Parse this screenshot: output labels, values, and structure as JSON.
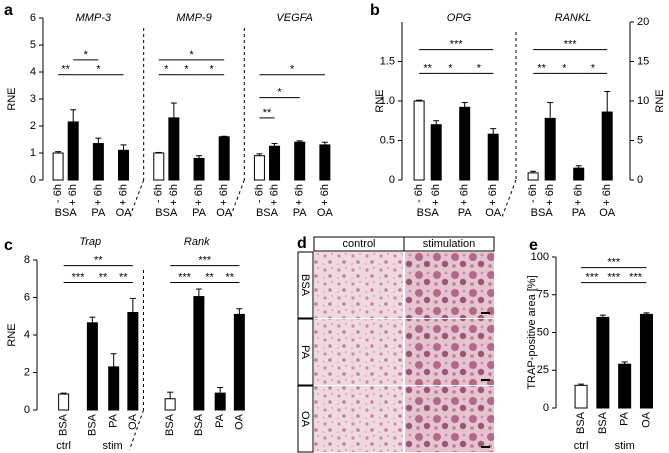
{
  "chart_data": [
    {
      "type": "bar",
      "label": "a",
      "ylabel": "RNE",
      "ylim": [
        0,
        6
      ],
      "yticks": [
        0,
        1,
        2,
        3,
        4,
        5,
        6
      ],
      "categories": [
        "- 6h",
        "+ 6h",
        "+ 6h",
        "+ 6h"
      ],
      "group_labels": [
        "BSA",
        "PA",
        "OA"
      ],
      "colors": [
        "#ffffff",
        "#000000",
        "#000000",
        "#000000"
      ],
      "groups": [
        {
          "title": "MMP-3",
          "values": [
            1.0,
            2.15,
            1.35,
            1.1
          ],
          "errors": [
            0.05,
            0.45,
            0.2,
            0.2
          ],
          "significance": [
            {
              "label": "**",
              "from": 0,
              "to": 1,
              "y": 3.9
            },
            {
              "label": "*",
              "from": 1,
              "to": 2,
              "y": 4.45
            },
            {
              "label": "*",
              "from": 1,
              "to": 3,
              "y": 3.9
            }
          ]
        },
        {
          "title": "MMP-9",
          "values": [
            1.0,
            2.3,
            0.8,
            1.6
          ],
          "errors": [
            0.02,
            0.55,
            0.1,
            0.02
          ],
          "significance": [
            {
              "label": "*",
              "from": 0,
              "to": 3,
              "y": 4.45
            },
            {
              "label": "*",
              "from": 0,
              "to": 1,
              "y": 3.9
            },
            {
              "label": "*",
              "from": 1,
              "to": 2,
              "y": 3.9
            },
            {
              "label": "*",
              "from": 2,
              "to": 3,
              "y": 3.9
            }
          ]
        },
        {
          "title": "VEGFA",
          "values": [
            0.9,
            1.25,
            1.4,
            1.3
          ],
          "errors": [
            0.07,
            0.1,
            0.05,
            0.1
          ],
          "significance": [
            {
              "label": "*",
              "from": 0,
              "to": 3,
              "y": 3.9
            },
            {
              "label": "*",
              "from": 0,
              "to": 2,
              "y": 3.05
            },
            {
              "label": "**",
              "from": 0,
              "to": 1,
              "y": 2.3
            }
          ]
        }
      ]
    },
    {
      "type": "bar",
      "label": "b",
      "ylabel": "RNE",
      "y2label": "RNE",
      "ylim": [
        0,
        2
      ],
      "yticks": [
        0,
        0.5,
        {
          "value": 1,
          "label": "1.0"
        },
        1.5
      ],
      "y2lim": [
        0,
        20
      ],
      "y2ticks": [
        0,
        5,
        10,
        15,
        20
      ],
      "categories": [
        "- 6h",
        "+ 6h",
        "+ 6h",
        "+ 6h"
      ],
      "group_labels": [
        "BSA",
        "PA",
        "OA"
      ],
      "colors": [
        "#ffffff",
        "#000000",
        "#000000",
        "#000000"
      ],
      "groups": [
        {
          "title": "OPG",
          "values": [
            1.0,
            0.7,
            0.92,
            0.58
          ],
          "errors": [
            0.01,
            0.05,
            0.06,
            0.07
          ],
          "significance": [
            {
              "label": "***",
              "from": 0,
              "to": 3,
              "y": 1.65
            },
            {
              "label": "**",
              "from": 0,
              "to": 1,
              "y": 1.35
            },
            {
              "label": "*",
              "from": 1,
              "to": 2,
              "y": 1.35
            },
            {
              "label": "*",
              "from": 2,
              "to": 3,
              "y": 1.35
            }
          ]
        },
        {
          "title": "RANKL",
          "axis": "y2",
          "values": [
            0.9,
            7.8,
            1.5,
            8.6
          ],
          "errors": [
            0.2,
            2.0,
            0.3,
            2.6
          ],
          "significance": [
            {
              "label": "***",
              "from": 0,
              "to": 3,
              "y": 16.5
            },
            {
              "label": "**",
              "from": 0,
              "to": 1,
              "y": 13.5
            },
            {
              "label": "*",
              "from": 1,
              "to": 2,
              "y": 13.5
            },
            {
              "label": "*",
              "from": 2,
              "to": 3,
              "y": 13.5
            }
          ]
        }
      ]
    },
    {
      "type": "bar",
      "label": "c",
      "ylabel": "RNE",
      "ylim": [
        0,
        8
      ],
      "yticks": [
        0,
        2,
        4,
        6,
        8
      ],
      "categories": [
        "BSA",
        "BSA",
        "PA",
        "OA"
      ],
      "group_labels": [
        "ctrl",
        "stim"
      ],
      "colors": [
        "#ffffff",
        "#000000",
        "#000000",
        "#000000"
      ],
      "groups": [
        {
          "title": "Trap",
          "values": [
            0.85,
            4.65,
            2.3,
            5.2
          ],
          "errors": [
            0.05,
            0.3,
            0.7,
            0.75
          ],
          "significance": [
            {
              "label": "**",
              "from": 0,
              "to": 3,
              "y": 7.7
            },
            {
              "label": "***",
              "from": 0,
              "to": 1,
              "y": 6.8
            },
            {
              "label": "**",
              "from": 1,
              "to": 2,
              "y": 6.8
            },
            {
              "label": "**",
              "from": 2,
              "to": 3,
              "y": 6.8
            }
          ]
        },
        {
          "title": "Rank",
          "values": [
            0.6,
            6.05,
            0.9,
            5.1
          ],
          "errors": [
            0.35,
            0.4,
            0.3,
            0.3
          ],
          "significance": [
            {
              "label": "***",
              "from": 0,
              "to": 3,
              "y": 7.7
            },
            {
              "label": "***",
              "from": 0,
              "to": 1,
              "y": 6.8
            },
            {
              "label": "**",
              "from": 1,
              "to": 2,
              "y": 6.8
            },
            {
              "label": "**",
              "from": 2,
              "to": 3,
              "y": 6.8
            }
          ]
        }
      ]
    },
    {
      "type": "bar",
      "label": "e",
      "ylabel": "TRAP-positive area [%]",
      "ylim": [
        0,
        100
      ],
      "yticks": [
        0,
        25,
        50,
        75,
        100
      ],
      "categories": [
        "BSA",
        "BSA",
        "PA",
        "OA"
      ],
      "group_labels": [
        "ctrl",
        "stim"
      ],
      "colors": [
        "#ffffff",
        "#000000",
        "#000000",
        "#000000"
      ],
      "groups": [
        {
          "values": [
            15,
            60,
            29,
            62
          ],
          "errors": [
            0.8,
            1.5,
            1.5,
            1
          ],
          "significance": [
            {
              "label": "***",
              "from": 0,
              "to": 3,
              "y": 93
            },
            {
              "label": "***",
              "from": 0,
              "to": 1,
              "y": 83
            },
            {
              "label": "***",
              "from": 1,
              "to": 2,
              "y": 83
            },
            {
              "label": "***",
              "from": 2,
              "to": 3,
              "y": 83
            }
          ]
        }
      ]
    }
  ],
  "image_panel": {
    "label": "d",
    "columns": [
      "control",
      "stimulation"
    ],
    "rows": [
      "BSA",
      "PA",
      "OA"
    ]
  }
}
